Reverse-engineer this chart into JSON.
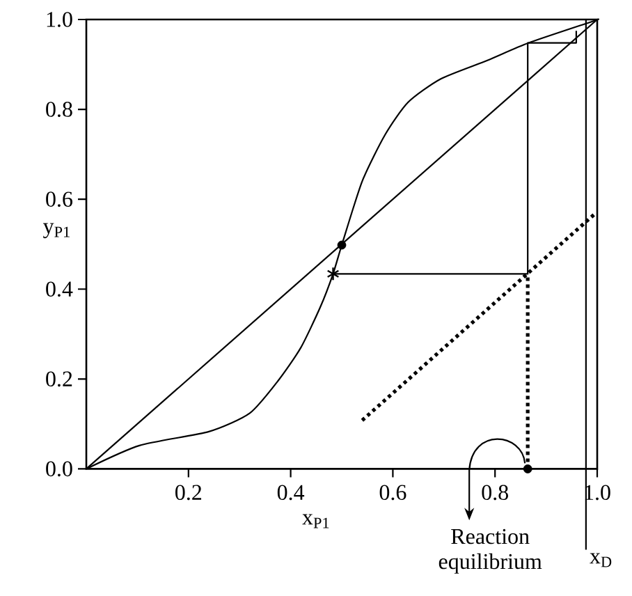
{
  "chart_data": {
    "type": "line",
    "xlabel": "x$_{P1}$",
    "ylabel": "y$_{P1}$",
    "xlim": [
      0,
      1
    ],
    "ylim": [
      0,
      1
    ],
    "xticks": [
      0.2,
      0.4,
      0.6,
      0.8,
      {
        "value": 1,
        "label": "1.0"
      }
    ],
    "yticks": [
      {
        "value": 0,
        "label": "0.0"
      },
      0.2,
      0.4,
      0.6,
      0.8,
      {
        "value": 1,
        "label": "1.0"
      }
    ],
    "series": [
      {
        "color": "#000000",
        "line_style": "solid",
        "marker": "none",
        "x": [
          0,
          1
        ],
        "values": [
          0,
          1
        ]
      },
      {
        "color": "#000000",
        "line_style": "solid",
        "marker": "none",
        "x": [
          0,
          0.104,
          0.24,
          0.32,
          0.376,
          0.42,
          0.458,
          0.483,
          0.5,
          0.54,
          0.585,
          0.63,
          0.694,
          0.785,
          0.866,
          0.994,
          1
        ],
        "values": [
          0,
          0.052,
          0.083,
          0.124,
          0.197,
          0.27,
          0.36,
          0.434,
          0.498,
          0.64,
          0.744,
          0.816,
          0.868,
          0.909,
          0.948,
          0.997,
          1
        ]
      },
      {
        "color": "#000000",
        "line_style": "solid",
        "marker": "none",
        "x": [
          0.483,
          0.864,
          0.864,
          0.959,
          0.959
        ],
        "values": [
          0.434,
          0.434,
          0.948,
          0.948,
          0.975
        ]
      },
      {
        "color": "#000000",
        "line_style": "dotted",
        "marker": "none",
        "x": [
          0.864,
          0.864
        ],
        "values": [
          0,
          0.434
        ]
      },
      {
        "color": "#000000",
        "line_style": "dotted",
        "marker": "none",
        "x": [
          0.54,
          0.996
        ],
        "values": [
          0.108,
          0.568
        ]
      },
      {
        "type": "scatter",
        "color": "#000000",
        "marker": "circle",
        "x": [
          0.5,
          0.864
        ],
        "values": [
          0.498,
          0
        ]
      },
      {
        "type": "scatter",
        "color": "#000000",
        "marker": "cross",
        "x": [
          0.483
        ],
        "values": [
          0.434
        ]
      }
    ],
    "ref_lines": [
      {
        "axis": "x",
        "value": 0.978,
        "label": "x$_{D}$"
      }
    ],
    "annotations": [
      {
        "text": "Reaction equilibrium",
        "x": 0.864,
        "y": 0
      }
    ]
  }
}
